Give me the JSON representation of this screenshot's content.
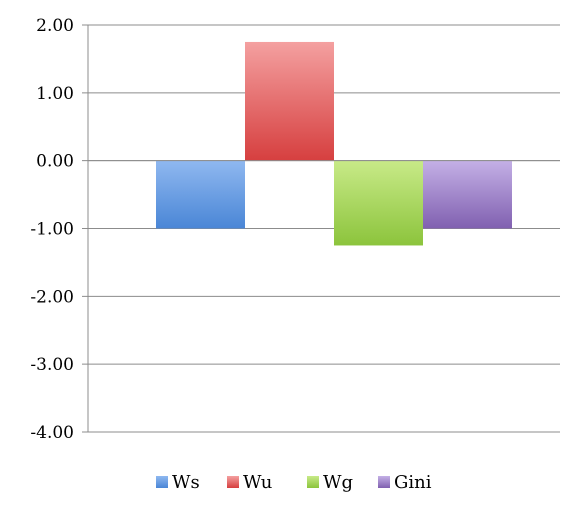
{
  "chart_data": {
    "type": "bar",
    "categories": [
      ""
    ],
    "series": [
      {
        "name": "Ws",
        "values": [
          -1.0
        ],
        "color": "#4a86d6",
        "color_light": "#8fb8f0"
      },
      {
        "name": "Wu",
        "values": [
          1.75
        ],
        "color": "#d63f3f",
        "color_light": "#f4a0a0"
      },
      {
        "name": "Wg",
        "values": [
          -1.25
        ],
        "color": "#8cc43c",
        "color_light": "#c8ea88"
      },
      {
        "name": "Gini",
        "values": [
          -1.0
        ],
        "color": "#8060b0",
        "color_light": "#c4b0e6"
      }
    ],
    "yticks": [
      "2.00",
      "1.00",
      "0.00",
      "-1.00",
      "-2.00",
      "-3.00",
      "-4.00"
    ],
    "ytick_values": [
      2,
      1,
      0,
      -1,
      -2,
      -3,
      -4
    ],
    "ylim": [
      -4,
      2
    ],
    "grid": true,
    "legend_position": "bottom",
    "title": "",
    "xlabel": "",
    "ylabel": ""
  }
}
